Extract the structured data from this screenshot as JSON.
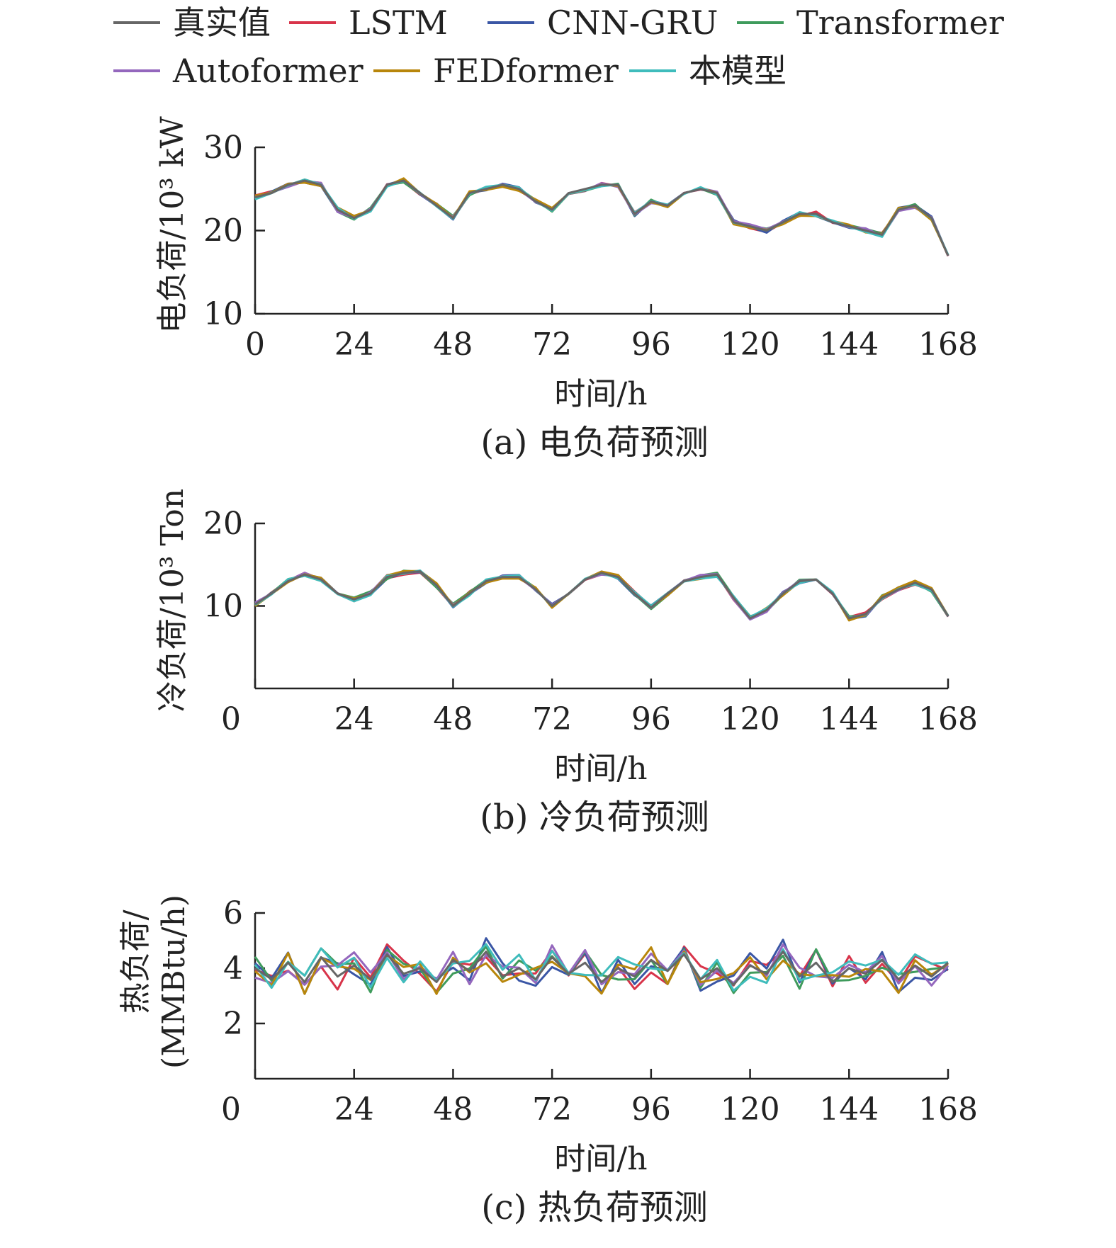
{
  "legend": [
    {
      "name": "真实值",
      "color": "#666666"
    },
    {
      "name": "LSTM",
      "color": "#d8344a"
    },
    {
      "name": "CNN-GRU",
      "color": "#3a56a5"
    },
    {
      "name": "Transformer",
      "color": "#3f9b5c"
    },
    {
      "name": "Autoformer",
      "color": "#9467bd"
    },
    {
      "name": "FEDformer",
      "color": "#b8860b"
    },
    {
      "name": "本模型",
      "color": "#3fbcbc"
    }
  ],
  "chart_data": [
    {
      "type": "line",
      "caption": "(a) 电负荷预测",
      "xlabel": "时间/h",
      "ylabel": "电负荷/10³ kW",
      "xlim": [
        0,
        168
      ],
      "ylim": [
        10,
        30
      ],
      "xticks": [
        "0",
        "24",
        "48",
        "72",
        "96",
        "120",
        "144",
        "168"
      ],
      "yticks": [
        "10",
        "20",
        "30"
      ],
      "x": [
        0,
        4,
        8,
        12,
        16,
        20,
        24,
        28,
        32,
        36,
        40,
        44,
        48,
        52,
        56,
        60,
        64,
        68,
        72,
        76,
        80,
        84,
        88,
        92,
        96,
        100,
        104,
        108,
        112,
        116,
        120,
        124,
        128,
        132,
        136,
        140,
        144,
        148,
        152,
        156,
        160,
        164,
        168
      ],
      "series": [
        {
          "name": "真实值",
          "values": [
            24.0,
            24.5,
            25.5,
            26.0,
            25.5,
            22.5,
            21.5,
            22.5,
            25.5,
            26.0,
            24.5,
            23.0,
            21.5,
            24.5,
            25.0,
            25.5,
            25.0,
            23.5,
            22.5,
            24.5,
            25.0,
            25.5,
            25.5,
            22.0,
            23.5,
            23.0,
            24.5,
            25.0,
            24.5,
            21.0,
            20.5,
            20.0,
            21.0,
            22.0,
            22.0,
            21.0,
            20.5,
            20.0,
            19.5,
            22.5,
            23.0,
            21.5,
            17.0
          ]
        }
      ]
    },
    {
      "type": "line",
      "caption": "(b) 冷负荷预测",
      "xlabel": "时间/h",
      "ylabel": "冷负荷/10³ Ton",
      "xlim": [
        0,
        168
      ],
      "ylim": [
        0,
        20
      ],
      "xticks": [
        "0",
        "24",
        "48",
        "72",
        "96",
        "120",
        "144",
        "168"
      ],
      "yticks": [
        "10",
        "20"
      ],
      "x": [
        0,
        4,
        8,
        12,
        16,
        20,
        24,
        28,
        32,
        36,
        40,
        44,
        48,
        52,
        56,
        60,
        64,
        68,
        72,
        76,
        80,
        84,
        88,
        92,
        96,
        100,
        104,
        108,
        112,
        116,
        120,
        124,
        128,
        132,
        136,
        140,
        144,
        148,
        152,
        156,
        160,
        164,
        168
      ],
      "series": [
        {
          "name": "真实值",
          "values": [
            10.2,
            11.5,
            13.0,
            13.8,
            13.2,
            11.5,
            10.8,
            11.5,
            13.5,
            14.0,
            14.2,
            12.5,
            10.0,
            11.5,
            13.0,
            13.5,
            13.5,
            12.0,
            10.0,
            11.5,
            13.2,
            14.0,
            13.5,
            11.5,
            9.8,
            11.5,
            13.0,
            13.5,
            13.8,
            11.0,
            8.5,
            9.5,
            11.5,
            13.0,
            13.2,
            11.5,
            8.5,
            9.0,
            11.0,
            12.0,
            12.8,
            12.0,
            8.8
          ]
        }
      ]
    },
    {
      "type": "line",
      "caption": "(c) 热负荷预测",
      "xlabel": "时间/h",
      "ylabel": "热负荷/ (MMBtu/h)",
      "xlim": [
        0,
        168
      ],
      "ylim": [
        0,
        6
      ],
      "xticks": [
        "0",
        "24",
        "48",
        "72",
        "96",
        "120",
        "144",
        "168"
      ],
      "yticks": [
        "2",
        "4",
        "6"
      ],
      "x": [
        0,
        4,
        8,
        12,
        16,
        20,
        24,
        28,
        32,
        36,
        40,
        44,
        48,
        52,
        56,
        60,
        64,
        68,
        72,
        76,
        80,
        84,
        88,
        92,
        96,
        100,
        104,
        108,
        112,
        116,
        120,
        124,
        128,
        132,
        136,
        140,
        144,
        148,
        152,
        156,
        160,
        164,
        168
      ],
      "series": [
        {
          "name": "真实值",
          "values": [
            4.0,
            3.6,
            4.2,
            3.5,
            4.4,
            3.7,
            4.1,
            3.6,
            4.5,
            3.8,
            4.0,
            3.5,
            4.3,
            3.9,
            4.6,
            3.7,
            4.0,
            3.6,
            4.4,
            3.8,
            4.2,
            3.5,
            4.0,
            3.7,
            4.3,
            3.9,
            4.5,
            3.6,
            4.0,
            3.4,
            4.1,
            3.8,
            4.6,
            3.7,
            4.2,
            3.5,
            4.0,
            3.8,
            4.3,
            3.6,
            4.1,
            3.7,
            4.2
          ]
        }
      ]
    }
  ]
}
